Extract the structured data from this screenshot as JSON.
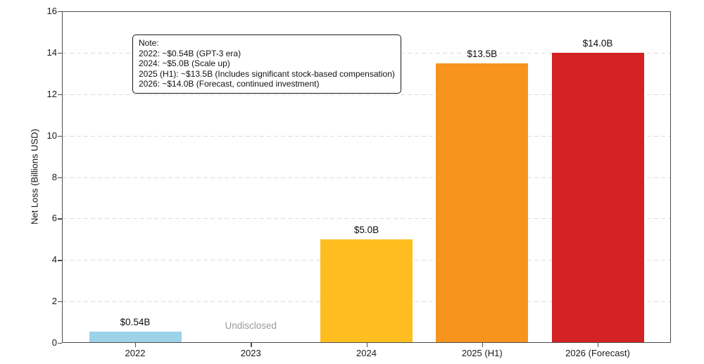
{
  "chart_data": {
    "type": "bar",
    "title": "",
    "xlabel": "",
    "ylabel": "Net Loss (Billions USD)",
    "ylim": [
      0,
      16
    ],
    "ytick_step": 2,
    "grid": {
      "axis": "y",
      "style": "dashed",
      "color": "#dcdcdc"
    },
    "legend": "none",
    "categories": [
      "2022",
      "2023",
      "2024",
      "2025 (H1)",
      "2026 (Forecast)"
    ],
    "bars": [
      {
        "category": "2022",
        "value": 0.54,
        "label": "$0.54B",
        "color": "#9ED2E8"
      },
      {
        "category": "2023",
        "value": null,
        "label": "Undisclosed",
        "color": null
      },
      {
        "category": "2024",
        "value": 5.0,
        "label": "$5.0B",
        "color": "#FEBE20"
      },
      {
        "category": "2025 (H1)",
        "value": 13.5,
        "label": "$13.5B",
        "color": "#F7941E"
      },
      {
        "category": "2026 (Forecast)",
        "value": 14.0,
        "label": "$14.0B",
        "color": "#D42121"
      }
    ],
    "note": {
      "lines": [
        "Note:",
        "2022: ~$0.54B (GPT-3 era)",
        "2024: ~$5.0B (Scale up)",
        "2025 (H1): ~$13.5B (Includes significant stock-based compensation)",
        "2026: ~$14.0B (Forecast, continued investment)"
      ]
    }
  },
  "colors": {
    "spine": "#4d4d4d",
    "tick_label": "#1a1a1a",
    "value_label": "#0d0d0d",
    "undisclosed_label": "#9b9b9b",
    "grid": "#dcdcdc",
    "note_border": "#1a1a1a",
    "background": "#ffffff"
  }
}
